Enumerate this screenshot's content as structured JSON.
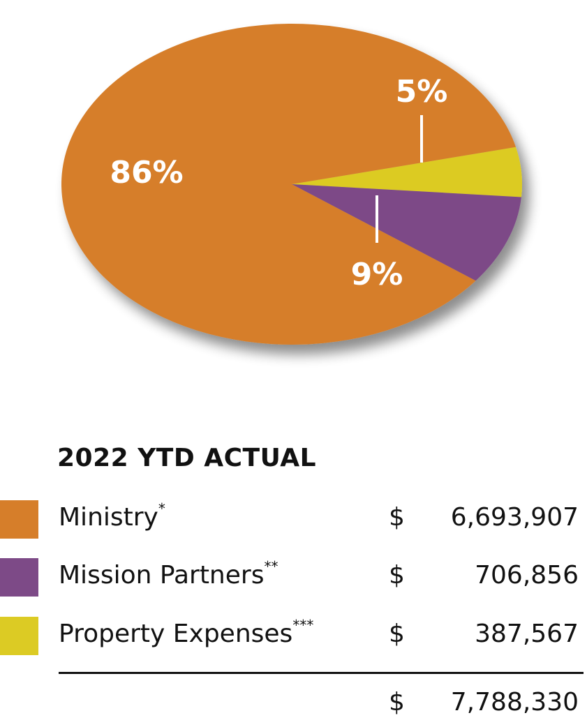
{
  "chart_data": {
    "type": "pie",
    "title": "",
    "slices": [
      {
        "name": "Ministry",
        "percent": 86,
        "label": "86%",
        "color": "#D67E2A"
      },
      {
        "name": "Mission Partners",
        "percent": 9,
        "label": "9%",
        "color": "#7D4A87"
      },
      {
        "name": "Property Expenses",
        "percent": 5,
        "label": "5%",
        "color": "#DCCB24"
      }
    ]
  },
  "summary": {
    "title": "2022 YTD ACTUAL",
    "rows": [
      {
        "label": "Ministry",
        "marker": "*",
        "currency": "$",
        "amount": "6,693,907",
        "color": "#D67E2A"
      },
      {
        "label": "Mission Partners",
        "marker": "**",
        "currency": "$",
        "amount": "706,856",
        "color": "#7D4A87"
      },
      {
        "label": "Property Expenses",
        "marker": "***",
        "currency": "$",
        "amount": "387,567",
        "color": "#DCCB24"
      }
    ],
    "total": {
      "currency": "$",
      "amount": "7,788,330"
    }
  }
}
